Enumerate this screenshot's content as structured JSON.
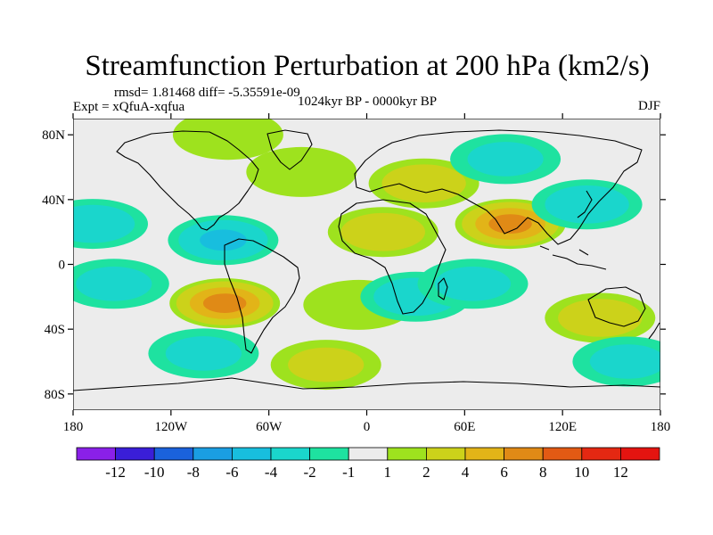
{
  "chart_data": {
    "type": "heatmap",
    "title": "Streamfunction Perturbation at 200 hPa (km2/s)",
    "stats_text": "rmsd= 1.81468 diff= -5.35591e-09",
    "experiment_text": "Expt = xQfuA-xqfua",
    "period_text": "1024kyr BP - 0000kyr BP",
    "season_text": "DJF",
    "xlim": [
      -180,
      180
    ],
    "ylim": [
      -90,
      90
    ],
    "x_ticks": [
      {
        "value": -180,
        "label": "180"
      },
      {
        "value": -120,
        "label": "120W"
      },
      {
        "value": -60,
        "label": "60W"
      },
      {
        "value": 0,
        "label": "0"
      },
      {
        "value": 60,
        "label": "60E"
      },
      {
        "value": 120,
        "label": "120E"
      },
      {
        "value": 180,
        "label": "180"
      }
    ],
    "y_ticks": [
      {
        "value": 80,
        "label": "80N"
      },
      {
        "value": 40,
        "label": "40N"
      },
      {
        "value": 0,
        "label": "0"
      },
      {
        "value": -40,
        "label": "40S"
      },
      {
        "value": -80,
        "label": "80S"
      }
    ],
    "colorbar": {
      "levels": [
        -12,
        -10,
        -8,
        -6,
        -4,
        -2,
        -1,
        1,
        2,
        4,
        6,
        8,
        10,
        12
      ],
      "labels": [
        "-12",
        "-10",
        "-8",
        "-6",
        "-4",
        "-2",
        "-1",
        "1",
        "2",
        "4",
        "6",
        "8",
        "10",
        "12"
      ],
      "colors": [
        "#8a20e8",
        "#3a1ed8",
        "#1a62dc",
        "#1a9ee2",
        "#18bede",
        "#1ad6cc",
        "#1ee2a0",
        "#ececec",
        "#9ee21e",
        "#ccd21a",
        "#e2b418",
        "#e08a16",
        "#e25a14",
        "#e42812",
        "#e41410"
      ]
    },
    "anomaly_centers": [
      {
        "name": "south-pacific-positive",
        "lon": -87,
        "lat": -24,
        "peak": 7
      },
      {
        "name": "tibet-positive",
        "lon": 88,
        "lat": 25,
        "peak": 7
      },
      {
        "name": "north-africa-positive",
        "lon": 10,
        "lat": 20,
        "peak": 3
      },
      {
        "name": "mediterranean-positive",
        "lon": 35,
        "lat": 50,
        "peak": 3
      },
      {
        "name": "north-atlantic-positive",
        "lon": -40,
        "lat": 57,
        "peak": 1.5
      },
      {
        "name": "arctic-positive",
        "lon": -85,
        "lat": 80,
        "peak": 1.5
      },
      {
        "name": "australia-positive",
        "lon": 143,
        "lat": -33,
        "peak": 3
      },
      {
        "name": "south-atlantic-positive",
        "lon": -25,
        "lat": -62,
        "peak": 2
      },
      {
        "name": "south-america-east-positive",
        "lon": -5,
        "lat": -25,
        "peak": 1.5
      },
      {
        "name": "caribbean-negative",
        "lon": -88,
        "lat": 15,
        "peak": -4
      },
      {
        "name": "north-pacific-negative",
        "lon": -168,
        "lat": 25,
        "peak": -3
      },
      {
        "name": "northwest-pacific-negative",
        "lon": 135,
        "lat": 37,
        "peak": -3
      },
      {
        "name": "siberia-negative",
        "lon": 85,
        "lat": 65,
        "peak": -2
      },
      {
        "name": "south-africa-negative",
        "lon": 30,
        "lat": -20,
        "peak": -3
      },
      {
        "name": "south-pacific-west-negative",
        "lon": -155,
        "lat": -12,
        "peak": -2
      },
      {
        "name": "southern-ocean-negative",
        "lon": -100,
        "lat": -55,
        "peak": -2
      },
      {
        "name": "indian-ocean-negative",
        "lon": 65,
        "lat": -12,
        "peak": -2
      },
      {
        "name": "southeast-indian-negative",
        "lon": 160,
        "lat": -60,
        "peak": -2
      }
    ]
  }
}
